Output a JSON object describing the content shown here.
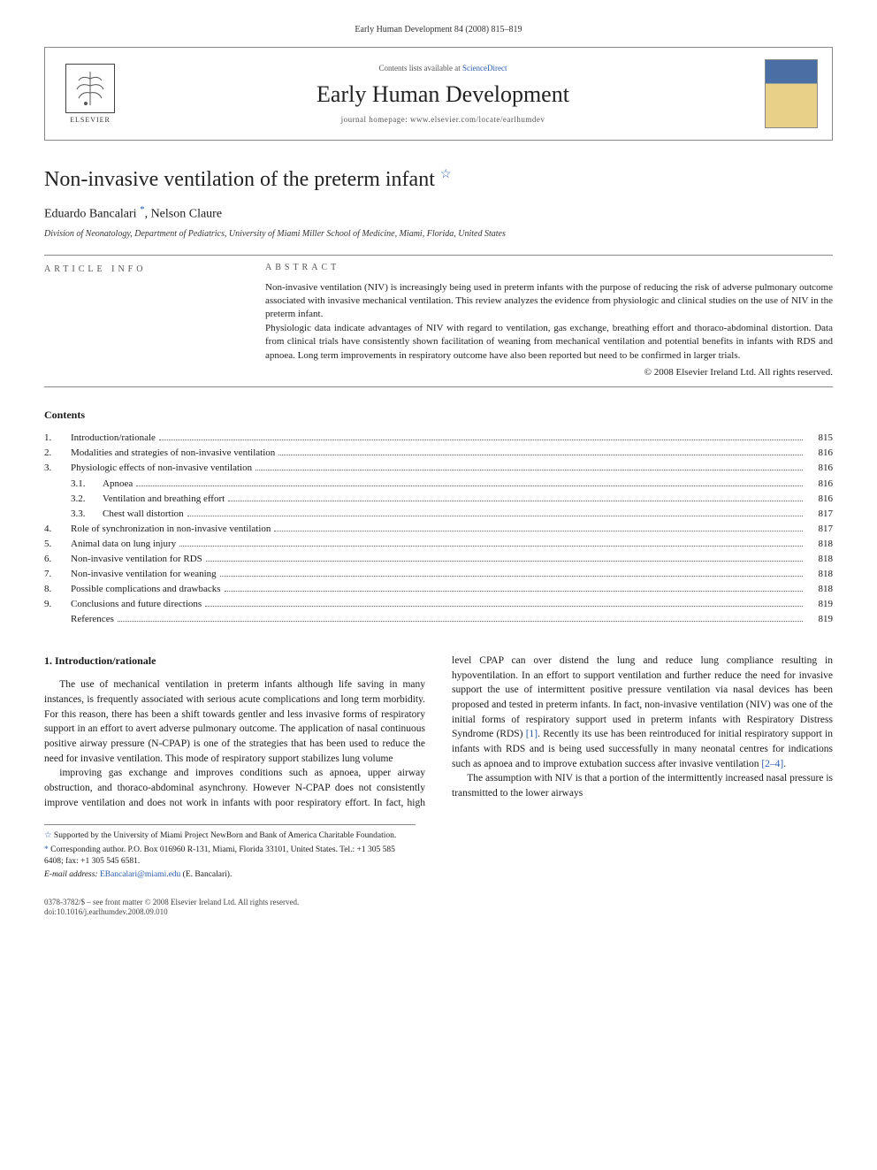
{
  "running_head": "Early Human Development 84 (2008) 815–819",
  "masthead": {
    "contents_prefix": "Contents lists available at ",
    "contents_link": "ScienceDirect",
    "journal_title": "Early Human Development",
    "homepage_label": "journal homepage: ",
    "homepage_url": "www.elsevier.com/locate/earlhumdev",
    "publisher_logo_label": "ELSEVIER"
  },
  "article": {
    "title": "Non-invasive ventilation of the preterm infant",
    "title_note_marker": "☆",
    "authors": "Eduardo Bancalari",
    "corr_marker": "*",
    "author2": ", Nelson Claure",
    "affiliation": "Division of Neonatology, Department of Pediatrics, University of Miami Miller School of Medicine, Miami, Florida, United States"
  },
  "article_info_label": "article info",
  "abstract": {
    "label": "abstract",
    "p1": "Non-invasive ventilation (NIV) is increasingly being used in preterm infants with the purpose of reducing the risk of adverse pulmonary outcome associated with invasive mechanical ventilation. This review analyzes the evidence from physiologic and clinical studies on the use of NIV in the preterm infant.",
    "p2": "Physiologic data indicate advantages of NIV with regard to ventilation, gas exchange, breathing effort and thoraco-abdominal distortion. Data from clinical trials have consistently shown facilitation of weaning from mechanical ventilation and potential benefits in infants with RDS and apnoea. Long term improvements in respiratory outcome have also been reported but need to be confirmed in larger trials.",
    "copyright": "© 2008 Elsevier Ireland Ltd. All rights reserved."
  },
  "contents": {
    "label": "Contents",
    "items": [
      {
        "num": "1.",
        "label": "Introduction/rationale",
        "page": "815",
        "sub": false
      },
      {
        "num": "2.",
        "label": "Modalities and strategies of non-invasive ventilation",
        "page": "816",
        "sub": false
      },
      {
        "num": "3.",
        "label": "Physiologic effects of non-invasive ventilation",
        "page": "816",
        "sub": false
      },
      {
        "num": "3.1.",
        "label": "Apnoea",
        "page": "816",
        "sub": true
      },
      {
        "num": "3.2.",
        "label": "Ventilation and breathing effort",
        "page": "816",
        "sub": true
      },
      {
        "num": "3.3.",
        "label": "Chest wall distortion",
        "page": "817",
        "sub": true
      },
      {
        "num": "4.",
        "label": "Role of synchronization in non-invasive ventilation",
        "page": "817",
        "sub": false
      },
      {
        "num": "5.",
        "label": "Animal data on lung injury",
        "page": "818",
        "sub": false
      },
      {
        "num": "6.",
        "label": "Non-invasive ventilation for RDS",
        "page": "818",
        "sub": false
      },
      {
        "num": "7.",
        "label": "Non-invasive ventilation for weaning",
        "page": "818",
        "sub": false
      },
      {
        "num": "8.",
        "label": "Possible complications and drawbacks",
        "page": "818",
        "sub": false
      },
      {
        "num": "9.",
        "label": "Conclusions and future directions",
        "page": "819",
        "sub": false
      },
      {
        "num": "",
        "label": "References",
        "page": "819",
        "sub": false
      }
    ]
  },
  "body": {
    "section1_head": "1. Introduction/rationale",
    "section1_p1": "The use of mechanical ventilation in preterm infants although life saving in many instances, is frequently associated with serious acute complications and long term morbidity. For this reason, there has been a shift towards gentler and less invasive forms of respiratory support in an effort to avert adverse pulmonary outcome. The application of nasal continuous positive airway pressure (N-CPAP) is one of the strategies that has been used to reduce the need for invasive ventilation. This mode of respiratory support stabilizes lung volume",
    "section1_p2a": "improving gas exchange and improves conditions such as apnoea, upper airway obstruction, and thoraco-abdominal asynchrony. However N-CPAP does not consistently improve ventilation and does not work in infants with poor respiratory effort. In fact, high level CPAP can over distend the lung and reduce lung compliance resulting in hypoventilation. In an effort to support ventilation and further reduce the need for invasive support the use of intermittent positive pressure ventilation via nasal devices has been proposed and tested in preterm infants. In fact, non-invasive ventilation (NIV) was one of the initial forms of respiratory support used in preterm infants with Respiratory Distress Syndrome (RDS) ",
    "ref1": "[1]",
    "section1_p2b": ". Recently its use has been reintroduced for initial respiratory support in infants with RDS and is being used successfully in many neonatal centres for indications such as apnoea and to improve extubation success after invasive ventilation ",
    "ref2": "[2–4]",
    "section1_p2c": ".",
    "section1_p3": "The assumption with NIV is that a portion of the intermittently increased nasal pressure is transmitted to the lower airways"
  },
  "footnotes": {
    "fn_star": "☆",
    "fn_star_text": " Supported by the University of Miami Project NewBorn and Bank of America Charitable Foundation.",
    "fn_corr": "*",
    "fn_corr_text": " Corresponding author. P.O. Box 016960 R-131, Miami, Florida 33101, United States. Tel.: +1 305 585 6408; fax: +1 305 545 6581.",
    "email_label": "E-mail address: ",
    "email": "EBancalari@miami.edu",
    "email_suffix": " (E. Bancalari)."
  },
  "bottom": {
    "line1": "0378-3782/$ – see front matter © 2008 Elsevier Ireland Ltd. All rights reserved.",
    "line2": "doi:10.1016/j.earlhumdev.2008.09.010"
  },
  "colors": {
    "link": "#2a5db0",
    "text": "#1a1a1a",
    "rule": "#888888"
  }
}
